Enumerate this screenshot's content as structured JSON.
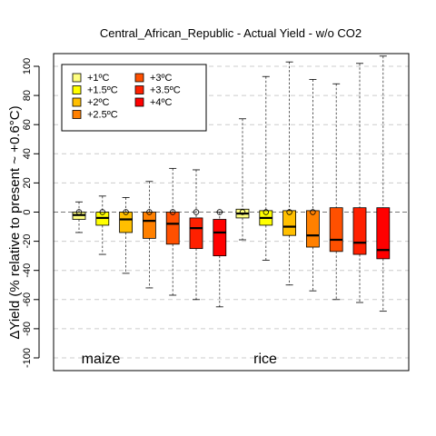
{
  "chart_data": {
    "type": "box",
    "title": "Central_African_Republic - Actual Yield - w/o CO2",
    "ylabel": "ΔYield (% relative to present ~ +0.6°C)",
    "ylim": [
      -100,
      100
    ],
    "yticks": [
      -100,
      -80,
      -60,
      -40,
      -20,
      0,
      20,
      40,
      60,
      80,
      100
    ],
    "grid": "horizontal-dashed",
    "legend_position": "top-left",
    "legend": [
      {
        "label": "+1ºC",
        "color": "#FFFF80"
      },
      {
        "label": "+1.5ºC",
        "color": "#FFFF00"
      },
      {
        "label": "+2ºC",
        "color": "#FFBF00"
      },
      {
        "label": "+2.5ºC",
        "color": "#FF8000"
      },
      {
        "label": "+3ºC",
        "color": "#FF5000"
      },
      {
        "label": "+3.5ºC",
        "color": "#FF2000"
      },
      {
        "label": "+4ºC",
        "color": "#FF0000"
      }
    ],
    "groups": [
      {
        "crop": "maize",
        "boxes": [
          {
            "level": "+1ºC",
            "whisker_low": -14,
            "q1": -5,
            "median": -2,
            "q3": 0,
            "whisker_high": 7,
            "outliers": [
              0
            ]
          },
          {
            "level": "+1.5ºC",
            "whisker_low": -29,
            "q1": -9,
            "median": -4,
            "q3": 0,
            "whisker_high": 11,
            "outliers": [
              0
            ]
          },
          {
            "level": "+2ºC",
            "whisker_low": -42,
            "q1": -14,
            "median": -5,
            "q3": 0,
            "whisker_high": 10,
            "outliers": [
              0
            ]
          },
          {
            "level": "+2.5ºC",
            "whisker_low": -52,
            "q1": -18,
            "median": -6,
            "q3": 0,
            "whisker_high": 21,
            "outliers": [
              0
            ]
          },
          {
            "level": "+3ºC",
            "whisker_low": -57,
            "q1": -22,
            "median": -8,
            "q3": 0,
            "whisker_high": 30,
            "outliers": [
              0
            ]
          },
          {
            "level": "+3.5ºC",
            "whisker_low": -60,
            "q1": -25,
            "median": -11,
            "q3": -4,
            "whisker_high": 29,
            "outliers": [
              0
            ]
          },
          {
            "level": "+4ºC",
            "whisker_low": -65,
            "q1": -30,
            "median": -14,
            "q3": -5,
            "whisker_high": 0,
            "outliers": [
              0
            ]
          }
        ]
      },
      {
        "crop": "rice",
        "boxes": [
          {
            "level": "+1ºC",
            "whisker_low": -19,
            "q1": -4,
            "median": -1,
            "q3": 2,
            "whisker_high": 64,
            "outliers": [
              0
            ]
          },
          {
            "level": "+1.5ºC",
            "whisker_low": -33,
            "q1": -9,
            "median": -4,
            "q3": 1,
            "whisker_high": 93,
            "outliers": [
              0
            ]
          },
          {
            "level": "+2ºC",
            "whisker_low": -50,
            "q1": -16,
            "median": -10,
            "q3": 1,
            "whisker_high": 103,
            "outliers": [
              0
            ]
          },
          {
            "level": "+2.5ºC",
            "whisker_low": -54,
            "q1": -24,
            "median": -16,
            "q3": 1,
            "whisker_high": 91,
            "outliers": [
              0
            ]
          },
          {
            "level": "+3ºC",
            "whisker_low": -60,
            "q1": -27,
            "median": -19,
            "q3": 3,
            "whisker_high": 88,
            "outliers": []
          },
          {
            "level": "+3.5ºC",
            "whisker_low": -62,
            "q1": -29,
            "median": -21,
            "q3": 3,
            "whisker_high": 102,
            "outliers": []
          },
          {
            "level": "+4ºC",
            "whisker_low": -68,
            "q1": -32,
            "median": -26,
            "q3": 3,
            "whisker_high": 107,
            "outliers": []
          }
        ]
      }
    ]
  }
}
